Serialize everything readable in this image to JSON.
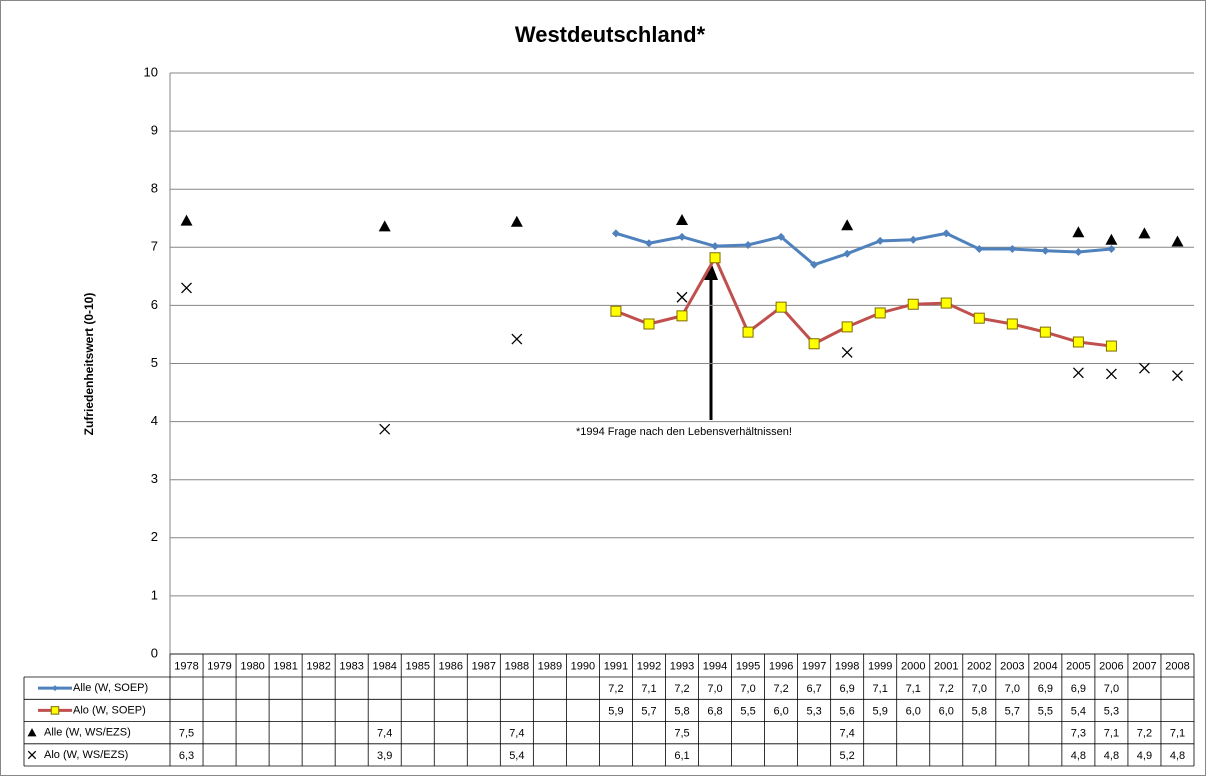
{
  "chart_data": {
    "type": "line",
    "title": "Westdeutschland*",
    "y_label": "Zufriedenheitswert (0-10)",
    "annotation": "*1994 Frage nach den Lebensverhältnissen!",
    "categories": [
      "1978",
      "1979",
      "1980",
      "1981",
      "1982",
      "1983",
      "1984",
      "1985",
      "1986",
      "1987",
      "1988",
      "1989",
      "1990",
      "1991",
      "1992",
      "1993",
      "1994",
      "1995",
      "1996",
      "1997",
      "1998",
      "1999",
      "2000",
      "2001",
      "2002",
      "2003",
      "2004",
      "2005",
      "2006",
      "2007",
      "2008"
    ],
    "ylim": [
      0,
      10
    ],
    "yticks": [
      0,
      1,
      2,
      3,
      4,
      5,
      6,
      7,
      8,
      9,
      10
    ],
    "grid": true,
    "series": [
      {
        "name": "Alle (W, SOEP)",
        "color": "#4f81bd",
        "marker": "diamond",
        "line": true,
        "values": [
          null,
          null,
          null,
          null,
          null,
          null,
          null,
          null,
          null,
          null,
          null,
          null,
          null,
          7.24,
          7.07,
          7.18,
          7.02,
          7.04,
          7.18,
          6.7,
          6.89,
          7.11,
          7.13,
          7.24,
          6.97,
          6.97,
          6.94,
          6.92,
          6.97,
          null,
          null
        ],
        "value_labels": [
          null,
          null,
          null,
          null,
          null,
          null,
          null,
          null,
          null,
          null,
          null,
          null,
          null,
          "7,2",
          "7,1",
          "7,2",
          "7,0",
          "7,0",
          "7,2",
          "6,7",
          "6,9",
          "7,1",
          "7,1",
          "7,2",
          "7,0",
          "7,0",
          "6,9",
          "6,9",
          "7,0",
          null,
          null
        ]
      },
      {
        "name": "Alo (W, SOEP)",
        "color": "#c0504d",
        "marker_color": "#ffff00",
        "marker": "square",
        "line": true,
        "values": [
          null,
          null,
          null,
          null,
          null,
          null,
          null,
          null,
          null,
          null,
          null,
          null,
          null,
          5.9,
          5.68,
          5.82,
          6.82,
          5.54,
          5.97,
          5.34,
          5.63,
          5.87,
          6.02,
          6.04,
          5.78,
          5.68,
          5.54,
          5.37,
          5.3,
          null,
          null
        ],
        "value_labels": [
          null,
          null,
          null,
          null,
          null,
          null,
          null,
          null,
          null,
          null,
          null,
          null,
          null,
          "5,9",
          "5,7",
          "5,8",
          "6,8",
          "5,5",
          "6,0",
          "5,3",
          "5,6",
          "5,9",
          "6,0",
          "6,0",
          "5,8",
          "5,7",
          "5,5",
          "5,4",
          "5,3",
          null,
          null
        ]
      },
      {
        "name": "Alle (W, WS/EZS)",
        "color": "#000000",
        "marker": "triangle",
        "line": false,
        "values": [
          7.46,
          null,
          null,
          null,
          null,
          null,
          7.36,
          null,
          null,
          null,
          7.44,
          null,
          null,
          null,
          null,
          7.47,
          null,
          null,
          null,
          null,
          7.38,
          null,
          null,
          null,
          null,
          null,
          null,
          7.26,
          7.13,
          7.24,
          7.1
        ],
        "value_labels": [
          "7,5",
          null,
          null,
          null,
          null,
          null,
          "7,4",
          null,
          null,
          null,
          "7,4",
          null,
          null,
          null,
          null,
          "7,5",
          null,
          null,
          null,
          null,
          "7,4",
          null,
          null,
          null,
          null,
          null,
          null,
          "7,3",
          "7,1",
          "7,2",
          "7,1"
        ]
      },
      {
        "name": "Alo (W, WS/EZS)",
        "color": "#000000",
        "marker": "cross",
        "line": false,
        "values": [
          6.3,
          null,
          null,
          null,
          null,
          null,
          3.87,
          null,
          null,
          null,
          5.42,
          null,
          null,
          null,
          null,
          6.14,
          null,
          null,
          null,
          null,
          5.19,
          null,
          null,
          null,
          null,
          null,
          null,
          4.84,
          4.82,
          4.92,
          4.79
        ],
        "value_labels": [
          "6,3",
          null,
          null,
          null,
          null,
          null,
          "3,9",
          null,
          null,
          null,
          "5,4",
          null,
          null,
          null,
          null,
          "6,1",
          null,
          null,
          null,
          null,
          "5,2",
          null,
          null,
          null,
          null,
          null,
          null,
          "4,8",
          "4,8",
          "4,9",
          "4,8"
        ]
      }
    ]
  }
}
